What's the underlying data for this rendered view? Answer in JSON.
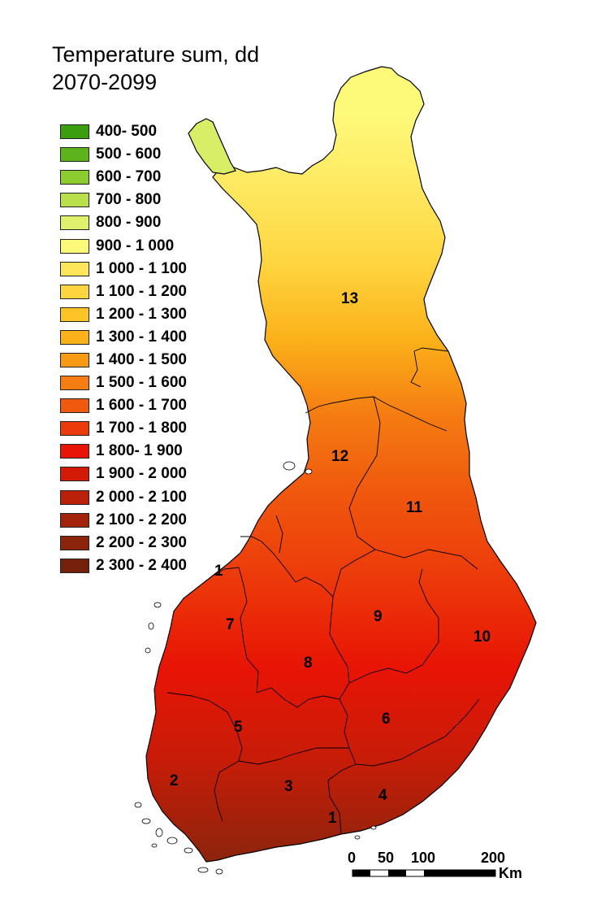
{
  "title": {
    "line1": "Temperature sum, dd",
    "line2": "2070-2099"
  },
  "legend": [
    {
      "label": "400- 500",
      "color": "#3a9e0e"
    },
    {
      "label": "500 - 600",
      "color": "#5cb31b"
    },
    {
      "label": "600 - 700",
      "color": "#8ccc2f"
    },
    {
      "label": "700 - 800",
      "color": "#b9e04a"
    },
    {
      "label": "800 - 900",
      "color": "#dff06c"
    },
    {
      "label": "900 - 1 000",
      "color": "#fdfa7a"
    },
    {
      "label": "1 000 - 1 100",
      "color": "#fee65a"
    },
    {
      "label": "1 100 - 1 200",
      "color": "#fed540"
    },
    {
      "label": "1 200 - 1 300",
      "color": "#fdc428"
    },
    {
      "label": "1 300 - 1 400",
      "color": "#fbb21a"
    },
    {
      "label": "1 400 - 1 500",
      "color": "#f89a14"
    },
    {
      "label": "1 500 - 1 600",
      "color": "#f57d12"
    },
    {
      "label": "1 600 - 1 700",
      "color": "#f05a0e"
    },
    {
      "label": "1 700 - 1 800",
      "color": "#ec3a0a"
    },
    {
      "label": "1 800- 1 900",
      "color": "#e81405"
    },
    {
      "label": "1 900 - 2 000",
      "color": "#d21a06"
    },
    {
      "label": "2 000 - 2 100",
      "color": "#bb200a"
    },
    {
      "label": "2 100 - 2 200",
      "color": "#a3240c"
    },
    {
      "label": "2 200 - 2 300",
      "color": "#8c240c"
    },
    {
      "label": "2 300 - 2 400",
      "color": "#74220c"
    }
  ],
  "regions": {
    "r1a": "1",
    "r1b": "1",
    "r2": "2",
    "r3": "3",
    "r4": "4",
    "r5": "5",
    "r6": "6",
    "r7": "7",
    "r8": "8",
    "r9": "9",
    "r10": "10",
    "r11": "11",
    "r12": "12",
    "r13": "13"
  },
  "scale": {
    "t0": "0",
    "t50": "50",
    "t100": "100",
    "t200": "200",
    "unit": "Km"
  }
}
